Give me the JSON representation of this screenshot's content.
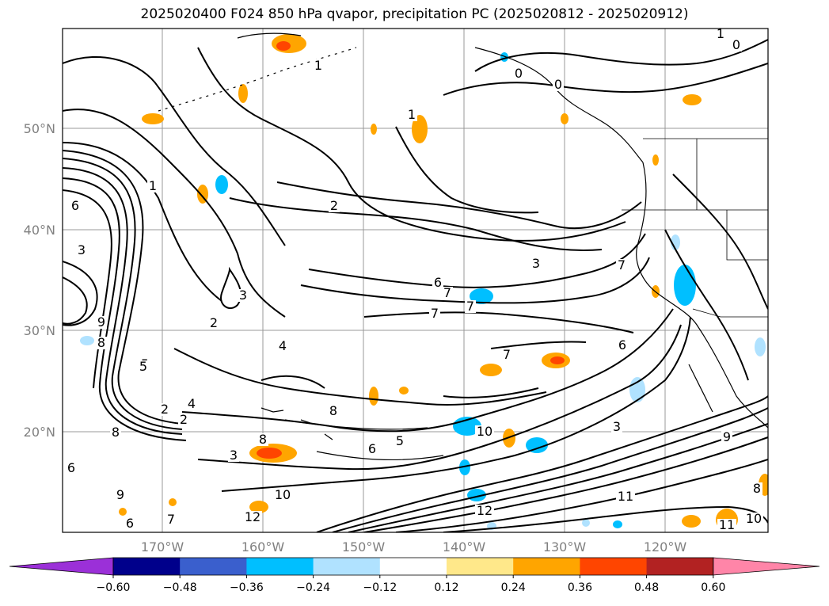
{
  "title": "2025020400 F024 850 hPa qvapor, precipitation PC (2025020812 - 2025020912)",
  "lat_labels": [
    "50°N",
    "40°N",
    "30°N",
    "20°N"
  ],
  "lon_labels": [
    "170°W",
    "160°W",
    "150°W",
    "140°W",
    "130°W",
    "120°W"
  ],
  "colorbar": {
    "colors": [
      "#9b30d8",
      "#00008b",
      "#3a5fcd",
      "#00bfff",
      "#b0e2ff",
      "#ffffff",
      "#ffe88a",
      "#ffa500",
      "#ff4500",
      "#b22222",
      "#ff85a8"
    ],
    "tick_labels": [
      "−0.60",
      "−0.48",
      "−0.36",
      "−0.24",
      "−0.12",
      "0.12",
      "0.24",
      "0.36",
      "0.48",
      "0.60"
    ]
  },
  "contour_labels": [
    {
      "text": "1"
    },
    {
      "text": "0"
    },
    {
      "text": "0"
    },
    {
      "text": "0"
    },
    {
      "text": "1"
    },
    {
      "text": "1"
    },
    {
      "text": "2"
    },
    {
      "text": "3"
    },
    {
      "text": "1"
    },
    {
      "text": "6"
    },
    {
      "text": "2"
    },
    {
      "text": "3"
    },
    {
      "text": "4"
    },
    {
      "text": "5"
    },
    {
      "text": "6"
    },
    {
      "text": "7"
    },
    {
      "text": "7"
    },
    {
      "text": "7"
    },
    {
      "text": "7"
    },
    {
      "text": "3"
    },
    {
      "text": "3"
    },
    {
      "text": "2"
    },
    {
      "text": "4"
    },
    {
      "text": "9"
    },
    {
      "text": "8"
    },
    {
      "text": "5"
    },
    {
      "text": "2"
    },
    {
      "text": "3"
    },
    {
      "text": "8"
    },
    {
      "text": "8"
    },
    {
      "text": "5"
    },
    {
      "text": "6"
    },
    {
      "text": "10"
    },
    {
      "text": "12"
    },
    {
      "text": "10"
    },
    {
      "text": "11"
    },
    {
      "text": "12"
    },
    {
      "text": "9"
    },
    {
      "text": "10"
    },
    {
      "text": "11"
    },
    {
      "text": "6"
    },
    {
      "text": "7"
    },
    {
      "text": "6"
    },
    {
      "text": "8"
    },
    {
      "text": "8"
    },
    {
      "text": "7"
    },
    {
      "text": "9"
    },
    {
      "text": "6"
    }
  ]
}
